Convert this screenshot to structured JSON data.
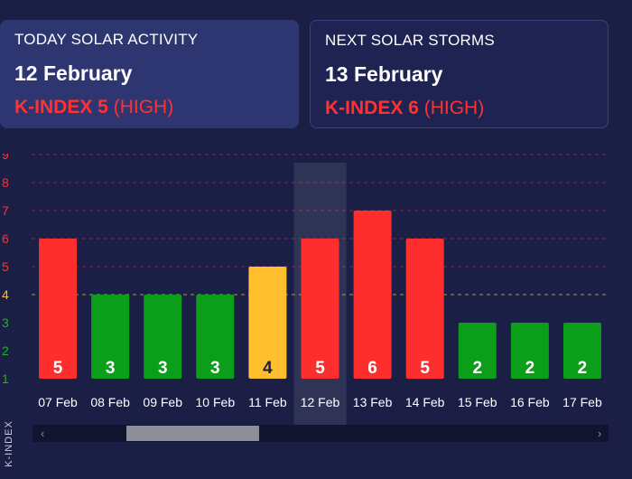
{
  "today_card": {
    "label": "TODAY SOLAR ACTIVITY",
    "date": "12 February",
    "k_label": "K-INDEX 5",
    "k_level": "(HIGH)"
  },
  "next_card": {
    "label": "NEXT SOLAR STORMS",
    "date": "13 February",
    "k_label": "K-INDEX 6",
    "k_level": "(HIGH)"
  },
  "colors": {
    "background": "#1b1f46",
    "high": "#ff2e2e",
    "moderate": "#ffbe2e",
    "low": "#0b9e19",
    "gridline": "#8a2a3a",
    "threshold_line": "#b79a3a"
  },
  "chart_data": {
    "type": "bar",
    "categories": [
      "07 Feb",
      "08 Feb",
      "09 Feb",
      "10 Feb",
      "11 Feb",
      "12 Feb",
      "13 Feb",
      "14 Feb",
      "15 Feb",
      "16 Feb",
      "17 Feb"
    ],
    "values": [
      5,
      3,
      3,
      3,
      4,
      5,
      6,
      5,
      2,
      2,
      2
    ],
    "bar_colors": [
      "#ff2e2e",
      "#0b9e19",
      "#0b9e19",
      "#0b9e19",
      "#ffbe2e",
      "#ff2e2e",
      "#ff2e2e",
      "#ff2e2e",
      "#0b9e19",
      "#0b9e19",
      "#0b9e19"
    ],
    "value_label_colors": [
      "#ffffff",
      "#ffffff",
      "#ffffff",
      "#ffffff",
      "#1b1f46",
      "#ffffff",
      "#ffffff",
      "#ffffff",
      "#ffffff",
      "#ffffff",
      "#ffffff"
    ],
    "highlighted_category": "12 Feb",
    "ylabel": "K-INDEX",
    "y_ticks": [
      1,
      2,
      3,
      4,
      5,
      6,
      7,
      8,
      9
    ],
    "y_tick_colors": [
      "#1fb51f",
      "#1fb51f",
      "#1fb51f",
      "#ffbe2e",
      "#ff3131",
      "#ff3131",
      "#ff3131",
      "#ff3131",
      "#ff3131"
    ],
    "ylim": [
      1,
      9
    ],
    "grid": true
  }
}
